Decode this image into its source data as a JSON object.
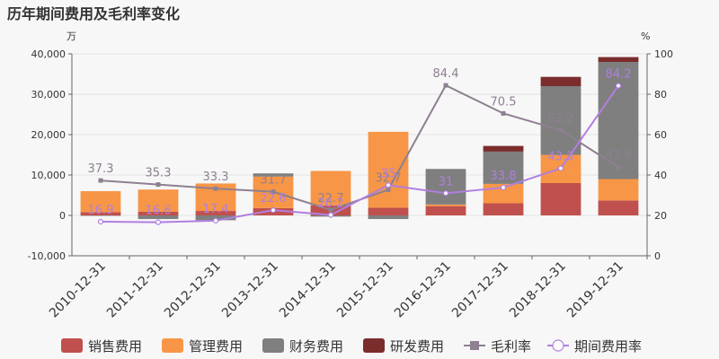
{
  "chart_data": {
    "type": "bar",
    "title": "历年期间费用及毛利率变化",
    "left_unit": "万",
    "right_unit": "%",
    "categories": [
      "2010-12-31",
      "2011-12-31",
      "2012-12-31",
      "2013-12-31",
      "2014-12-31",
      "2015-12-31",
      "2016-12-31",
      "2017-12-31",
      "2018-12-31",
      "2019-12-31"
    ],
    "left_axis": {
      "min": -10000,
      "max": 40000,
      "ticks": [
        -10000,
        0,
        10000,
        20000,
        30000,
        40000
      ],
      "tick_labels": [
        "-10,000",
        "0",
        "10,000",
        "20,000",
        "30,000",
        "40,000"
      ]
    },
    "right_axis": {
      "min": 0,
      "max": 100,
      "ticks": [
        0,
        20,
        40,
        60,
        80,
        100
      ],
      "tick_labels": [
        "0",
        "20",
        "40",
        "60",
        "80",
        "100"
      ]
    },
    "bar_series": [
      {
        "name": "销售费用",
        "color": "#c0504d",
        "values": [
          800,
          900,
          1100,
          1800,
          2500,
          1900,
          2300,
          3000,
          8000,
          3700
        ]
      },
      {
        "name": "管理费用",
        "color": "#f79646",
        "values": [
          5200,
          5500,
          6800,
          7800,
          8500,
          18800,
          400,
          4800,
          7000,
          5300
        ]
      },
      {
        "name": "财务费用",
        "color": "#7f7f7f",
        "values": [
          -100,
          -900,
          -1200,
          800,
          -300,
          -900,
          8800,
          8000,
          17000,
          29000
        ]
      },
      {
        "name": "研发费用",
        "color": "#7b2c2c",
        "values": [
          0,
          0,
          0,
          0,
          0,
          0,
          0,
          1400,
          2300,
          1200
        ]
      }
    ],
    "line_series": [
      {
        "name": "毛利率",
        "color": "#8e7f91",
        "values": [
          37.3,
          35.3,
          33.3,
          31.7,
          22.7,
          32.7,
          84.4,
          70.5,
          62.2,
          43.9
        ],
        "labels": [
          "37.3",
          "35.3",
          "33.3",
          "31.7",
          "22.7",
          "32.7",
          "84.4",
          "70.5",
          "62.2",
          "43.9"
        ]
      },
      {
        "name": "期间费用率",
        "color": "#b07fe0",
        "values": [
          16.9,
          16.6,
          17.4,
          22.6,
          20.2,
          35,
          31,
          33.8,
          43.3,
          84.2
        ],
        "labels": [
          "16.9",
          "16.6",
          "17.4",
          "22.6",
          "20.2",
          "35",
          "31",
          "33.8",
          "43.3",
          "84.2"
        ]
      }
    ],
    "grid": true,
    "legend_position": "bottom"
  }
}
